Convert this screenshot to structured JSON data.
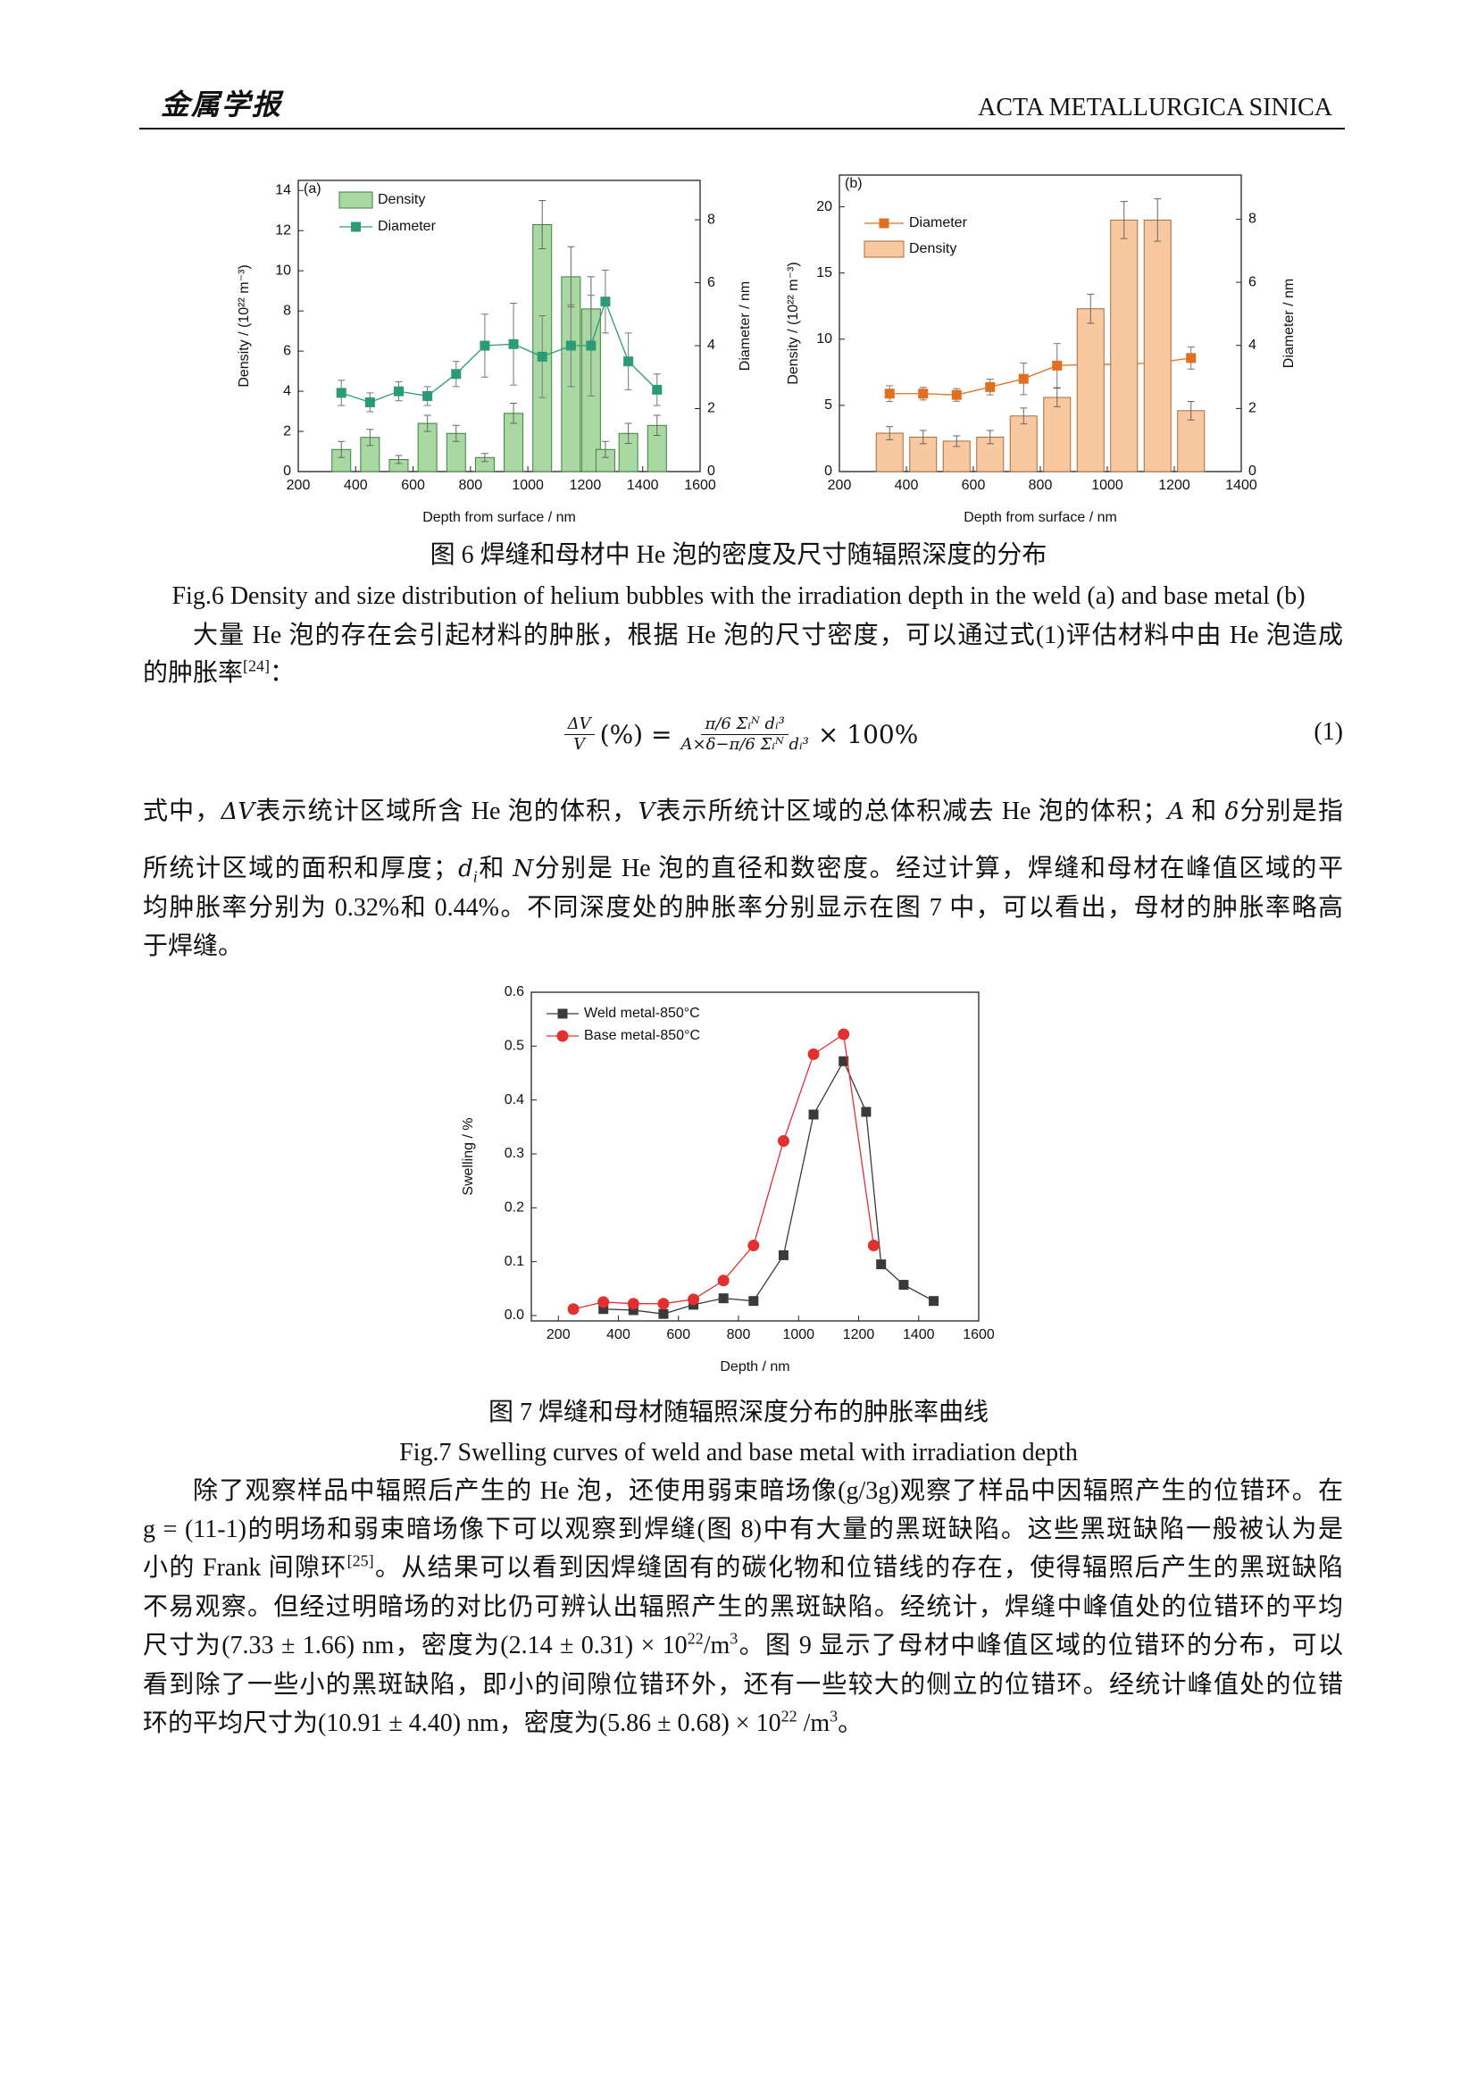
{
  "header": {
    "logo": "金属学报",
    "journal": "ACTA METALLURGICA SINICA"
  },
  "chart_data": [
    {
      "type": "combo",
      "panel": "(a)",
      "xlabel": "Depth from surface / nm",
      "ylabel": "Density / (10²² m⁻³)",
      "y2label": "Diameter / nm",
      "xlim": [
        200,
        1600
      ],
      "xticks": [
        200,
        400,
        600,
        800,
        1000,
        1200,
        1400,
        1600
      ],
      "ylim": [
        0,
        14.5
      ],
      "yticks": [
        0,
        2,
        4,
        6,
        8,
        10,
        12,
        14
      ],
      "y2lim": [
        0,
        9.25
      ],
      "y2ticks": [
        0,
        2,
        4,
        6,
        8
      ],
      "legend": "upper left",
      "series": [
        {
          "name": "Density",
          "type": "bar",
          "color": "#a9d8a3",
          "edge": "#3f7f3f",
          "x": [
            350,
            450,
            550,
            650,
            750,
            850,
            950,
            1050,
            1150,
            1220,
            1270,
            1350,
            1450
          ],
          "values": [
            1.1,
            1.7,
            0.6,
            2.4,
            1.9,
            0.7,
            2.9,
            12.3,
            9.7,
            8.1,
            1.1,
            1.9,
            2.3
          ],
          "errors": [
            0.4,
            0.4,
            0.2,
            0.4,
            0.4,
            0.2,
            0.5,
            1.2,
            1.5,
            1.6,
            0.4,
            0.5,
            0.5
          ]
        },
        {
          "name": "Diameter",
          "type": "line",
          "axis": "y2",
          "color": "#2a9a78",
          "marker": "square",
          "x": [
            350,
            450,
            550,
            650,
            750,
            850,
            950,
            1050,
            1150,
            1220,
            1270,
            1350,
            1450
          ],
          "values": [
            2.5,
            2.2,
            2.55,
            2.4,
            3.1,
            4.0,
            4.05,
            3.65,
            4.0,
            4.0,
            5.4,
            3.5,
            2.6
          ],
          "errors": [
            0.4,
            0.3,
            0.3,
            0.3,
            0.4,
            1.0,
            1.3,
            1.3,
            1.3,
            1.6,
            1.0,
            0.9,
            0.5
          ]
        }
      ]
    },
    {
      "type": "combo",
      "panel": "(b)",
      "xlabel": "Depth from surface / nm",
      "ylabel": "Density / (10²² m⁻³)",
      "y2label": "Diameter / nm",
      "xlim": [
        200,
        1400
      ],
      "xticks": [
        200,
        400,
        600,
        800,
        1000,
        1200,
        1400
      ],
      "ylim": [
        0,
        22.4
      ],
      "yticks": [
        0,
        5,
        10,
        15,
        20
      ],
      "y2lim": [
        0,
        9.4
      ],
      "y2ticks": [
        0,
        2,
        4,
        6,
        8
      ],
      "legend": "upper left",
      "series": [
        {
          "name": "Diameter",
          "type": "line",
          "axis": "y2",
          "color": "#e07020",
          "marker": "square",
          "x": [
            350,
            450,
            550,
            650,
            750,
            850,
            950,
            1050,
            1150,
            1250
          ],
          "values": [
            2.47,
            2.47,
            2.43,
            2.68,
            2.94,
            3.36,
            3.4,
            3.4,
            3.45,
            3.6
          ],
          "errors": [
            0.25,
            0.2,
            0.2,
            0.25,
            0.5,
            0.7,
            1.2,
            1.0,
            1.0,
            0.35
          ]
        },
        {
          "name": "Density",
          "type": "bar",
          "color": "#f8c9a0",
          "edge": "#a86a3a",
          "x": [
            350,
            450,
            550,
            650,
            750,
            850,
            950,
            1050,
            1150,
            1250
          ],
          "values": [
            2.9,
            2.6,
            2.3,
            2.6,
            4.2,
            5.6,
            12.3,
            19.0,
            19.0,
            4.6
          ],
          "errors": [
            0.5,
            0.5,
            0.4,
            0.5,
            0.6,
            0.7,
            1.1,
            1.4,
            1.6,
            0.7
          ]
        }
      ]
    },
    {
      "type": "line",
      "xlabel": "Depth / nm",
      "ylabel": "Swelling / %",
      "xlim": [
        110,
        1600
      ],
      "xticks": [
        200,
        400,
        600,
        800,
        1000,
        1200,
        1400,
        1600
      ],
      "ylim": [
        -0.01,
        0.6
      ],
      "yticks": [
        {
          "value": 0,
          "label": "0.0"
        },
        0.1,
        0.2,
        0.3,
        0.4,
        0.5,
        0.6
      ],
      "legend": "upper left",
      "series": [
        {
          "name": "Weld metal-850°C",
          "type": "line",
          "color": "#3a3a3a",
          "marker": "square",
          "x": [
            350,
            450,
            550,
            650,
            750,
            850,
            950,
            1050,
            1150,
            1225,
            1275,
            1350,
            1450
          ],
          "values": [
            0.012,
            0.01,
            0.003,
            0.02,
            0.032,
            0.027,
            0.112,
            0.373,
            0.472,
            0.378,
            0.095,
            0.057,
            0.027
          ]
        },
        {
          "name": "Base metal-850°C",
          "type": "line",
          "color": "#e03030",
          "marker": "circle",
          "x": [
            250,
            350,
            450,
            550,
            650,
            750,
            850,
            950,
            1050,
            1150,
            1250
          ],
          "values": [
            0.012,
            0.025,
            0.022,
            0.022,
            0.03,
            0.065,
            0.13,
            0.324,
            0.485,
            0.522,
            0.13
          ]
        }
      ]
    }
  ],
  "figure6": {
    "caption_cn": "图 6  焊缝和母材中 He 泡的密度及尺寸随辐照深度的分布",
    "caption_en": "Fig.6 Density and size distribution of helium bubbles with the irradiation depth in the weld (a) and base metal (b)"
  },
  "figure7": {
    "caption_cn": "图 7  焊缝和母材随辐照深度分布的肿胀率曲线",
    "caption_en": "Fig.7 Swelling curves of weld and base metal with irradiation depth"
  },
  "equation": {
    "lhs_num": "ΔV",
    "lhs_den": "V",
    "lhs_tail": "(%) =",
    "num": "π/6 Σᵢᴺ dᵢ³",
    "den": "A×δ−π/6 Σᵢᴺ dᵢ³",
    "rhs": "× 100%",
    "number": "(1)"
  },
  "paragraphs": [
    {
      "lines": [
        "大量 He 泡的存在会引起材料的肿胀，根据 He 泡的尺寸密度，可以通过式(1)评估材料中由 He 泡造成",
        [
          "的肿胀率",
          {
            "sup": "[24]"
          },
          "："
        ]
      ]
    },
    {
      "lines": [
        [
          "式中，",
          {
            "i": "ΔV"
          },
          "表示统计区域所含 He 泡的体积，",
          {
            "i": "V"
          },
          "表示所统计区域的总体积减去 He 泡的体积；",
          {
            "i": "A"
          },
          " 和 ",
          {
            "i": "δ"
          },
          "分别是指"
        ],
        [
          "所统计区域的面积和厚度；",
          {
            "i": "d"
          },
          {
            "sub": "i"
          },
          "和 ",
          {
            "i": "N"
          },
          "分别是 He 泡的直径和数密度。经过计算，焊缝和母材在峰值区域的平"
        ],
        "均肿胀率分别为 0.32%和 0.44%。不同深度处的肿胀率分别显示在图 7 中，可以看出，母材的肿胀率略高",
        "于焊缝。"
      ]
    },
    {
      "lines": [
        "除了观察样品中辐照后产生的 He 泡，还使用弱束暗场像(g/3g)观察了样品中因辐照产生的位错环。在",
        "g = (11-1)的明场和弱束暗场像下可以观察到焊缝(图 8)中有大量的黑斑缺陷。这些黑斑缺陷一般被认为是",
        [
          "小的 Frank 间隙环",
          {
            "sup": "[25]"
          },
          "。从结果可以看到因焊缝固有的碳化物和位错线的存在，使得辐照后产生的黑斑缺陷"
        ],
        "不易观察。但经过明暗场的对比仍可辨认出辐照产生的黑斑缺陷。经统计，焊缝中峰值处的位错环的平均",
        [
          "尺寸为(7.33 ± 1.66) nm，密度为(2.14 ± 0.31) × 10",
          {
            "sup": "22"
          },
          "/m",
          {
            "sup": "3"
          },
          "。图 9 显示了母材中峰值区域的位错环的分布，可以"
        ],
        "看到除了一些小的黑斑缺陷，即小的间隙位错环外，还有一些较大的侧立的位错环。经统计峰值处的位错",
        [
          "环的平均尺寸为(10.91 ± 4.40) nm，密度为(5.86 ± 0.68) × 10",
          {
            "sup": "22"
          },
          " /m",
          {
            "sup": "3"
          },
          "。"
        ]
      ]
    }
  ]
}
